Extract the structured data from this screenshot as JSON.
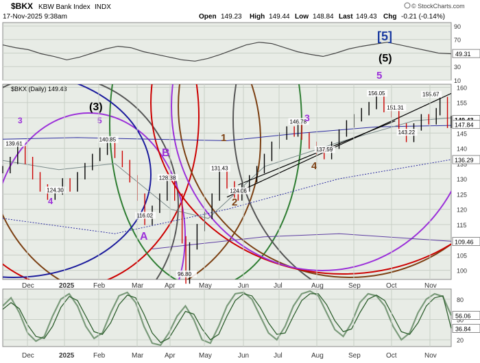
{
  "header": {
    "symbol": "$BKX",
    "name": "KBW Bank Index",
    "exchange": "INDX",
    "date": "17-Nov-2025 9:38am",
    "open_label": "Open",
    "open": "149.23",
    "high_label": "High",
    "high": "149.44",
    "low_label": "Low",
    "low": "148.84",
    "last_label": "Last",
    "last": "149.43",
    "chg_label": "Chg",
    "chg": "-0.21 (-0.14%)",
    "watermark": "© StockCharts.com"
  },
  "colors": {
    "panel_bg": "#e8ece6",
    "grid": "#c8cfc6",
    "price_bar": "#000000",
    "down_bar": "#cc0000",
    "ma_blue": "#2a2aa0",
    "ma_gray": "#7a8a8a",
    "trend_black": "#000000",
    "green_line": "#4a7a4a",
    "wave_purple": "#9b30d9",
    "wave_brown": "#7b3f12",
    "wave_blue": "#1a1a9c",
    "wave_a_magenta": "#b000b0"
  },
  "chart_data": [
    {
      "type": "line",
      "title": "",
      "panel": "RSI (upper indicator)",
      "ylim": [
        10,
        95
      ],
      "y_ticks": [
        "90",
        "70",
        "50",
        "30",
        "10"
      ],
      "last_value_label": "49.31",
      "series": [
        {
          "values": [
            62,
            58,
            55,
            49,
            45,
            40,
            44,
            50,
            56,
            60,
            58,
            52,
            48,
            44,
            40,
            38,
            42,
            48,
            55,
            62,
            66,
            64,
            58,
            52,
            48,
            45,
            50,
            56,
            60,
            63,
            66,
            62,
            58,
            54,
            50,
            49
          ]
        }
      ]
    },
    {
      "type": "line",
      "title": "$BKX (Daily) 149.43",
      "panel": "price",
      "x_ticks": [
        "Dec",
        "2025",
        "Feb",
        "Mar",
        "Apr",
        "May",
        "Jun",
        "Jul",
        "Aug",
        "Sep",
        "Oct",
        "Nov"
      ],
      "y_ticks": [
        "160",
        "155",
        "150",
        "145",
        "140",
        "135",
        "130",
        "125",
        "120",
        "115",
        "110",
        "105",
        "100"
      ],
      "ylim": [
        97,
        161
      ],
      "right_labels": [
        "149.43",
        "147.84",
        "136.29",
        "109.46"
      ],
      "point_labels": [
        {
          "label": "139.61",
          "x": 0.03,
          "y": 139.61
        },
        {
          "label": "124.30",
          "x": 0.14,
          "y": 124.3
        },
        {
          "label": "140.85",
          "x": 0.28,
          "y": 140.85
        },
        {
          "label": "116.02",
          "x": 0.38,
          "y": 116.02
        },
        {
          "label": "128.38",
          "x": 0.44,
          "y": 128.38
        },
        {
          "label": "96.80",
          "x": 0.49,
          "y": 96.8
        },
        {
          "label": "131.43",
          "x": 0.58,
          "y": 131.43
        },
        {
          "label": "124.06",
          "x": 0.63,
          "y": 124.06
        },
        {
          "label": "146.78",
          "x": 0.79,
          "y": 146.78
        },
        {
          "label": "137.59",
          "x": 0.86,
          "y": 137.59
        },
        {
          "label": "156.05",
          "x": 1.0,
          "y": 156.05
        },
        {
          "label": "151.31",
          "x": 1.05,
          "y": 151.31
        },
        {
          "label": "143.22",
          "x": 1.08,
          "y": 143.22
        },
        {
          "label": "155.67",
          "x": 1.17,
          "y": 155.67
        }
      ],
      "wave_labels": [
        "3",
        "4",
        "5",
        "(3)",
        "A",
        "B",
        "1",
        "2",
        "3",
        "4",
        "5",
        "(5)",
        "[5]"
      ],
      "series": [
        {
          "name": "",
          "x": [
            0,
            0.02,
            0.04,
            0.06,
            0.08,
            0.1,
            0.12,
            0.14,
            0.16,
            0.18,
            0.2,
            0.22,
            0.24,
            0.26,
            0.28,
            0.3,
            0.32,
            0.34,
            0.36,
            0.38,
            0.4,
            0.42,
            0.44,
            0.46,
            0.48,
            0.49,
            0.5,
            0.52,
            0.54,
            0.56,
            0.58,
            0.6,
            0.62,
            0.63,
            0.64,
            0.66,
            0.68,
            0.7,
            0.72,
            0.74,
            0.76,
            0.78,
            0.79,
            0.8,
            0.82,
            0.84,
            0.86,
            0.88,
            0.9,
            0.92,
            0.94,
            0.96,
            0.98,
            1.0,
            1.02,
            1.04,
            1.06,
            1.08,
            1.1,
            1.12,
            1.14,
            1.16,
            1.17,
            1.19,
            1.2
          ],
          "y": [
            133,
            136,
            139.6,
            136,
            131,
            127,
            124.3,
            126,
            129,
            127,
            131,
            134,
            137,
            139,
            140.85,
            138,
            135,
            130,
            124,
            116.02,
            120,
            124,
            128.38,
            124,
            110,
            96.8,
            108,
            114,
            118,
            124,
            131.43,
            128,
            125,
            124.06,
            127,
            130,
            133,
            137,
            141,
            144,
            146,
            145,
            146.78,
            144,
            141,
            139,
            137.59,
            141,
            145,
            148,
            150,
            152,
            154,
            156.05,
            153,
            151.31,
            147,
            143.22,
            147,
            150,
            149,
            152,
            155.67,
            147.84,
            149.43
          ]
        }
      ]
    },
    {
      "type": "line",
      "title": "",
      "panel": "Stochastic (lower indicator)",
      "ylim": [
        10,
        95
      ],
      "y_ticks": [
        "80",
        "50",
        "20"
      ],
      "last_value_labels": [
        "56.06",
        "36.84"
      ],
      "series": [
        {
          "values": [
            70,
            82,
            60,
            30,
            18,
            25,
            55,
            80,
            88,
            70,
            40,
            22,
            30,
            60,
            85,
            90,
            75,
            40,
            15,
            12,
            30,
            55,
            70,
            50,
            20,
            15,
            40,
            70,
            88,
            90,
            80,
            55,
            30,
            20,
            40,
            70,
            88,
            92,
            85,
            60,
            35,
            25,
            45,
            75,
            88,
            85,
            70,
            40,
            20,
            30,
            60,
            80,
            88,
            84,
            56
          ]
        },
        {
          "values": [
            65,
            75,
            66,
            42,
            25,
            22,
            40,
            68,
            84,
            78,
            55,
            32,
            28,
            45,
            72,
            86,
            82,
            58,
            30,
            16,
            22,
            42,
            62,
            58,
            36,
            20,
            28,
            55,
            78,
            88,
            85,
            68,
            45,
            28,
            30,
            55,
            78,
            88,
            88,
            72,
            48,
            32,
            36,
            60,
            80,
            86,
            78,
            55,
            32,
            28,
            45,
            70,
            82,
            85,
            37
          ]
        }
      ]
    }
  ]
}
